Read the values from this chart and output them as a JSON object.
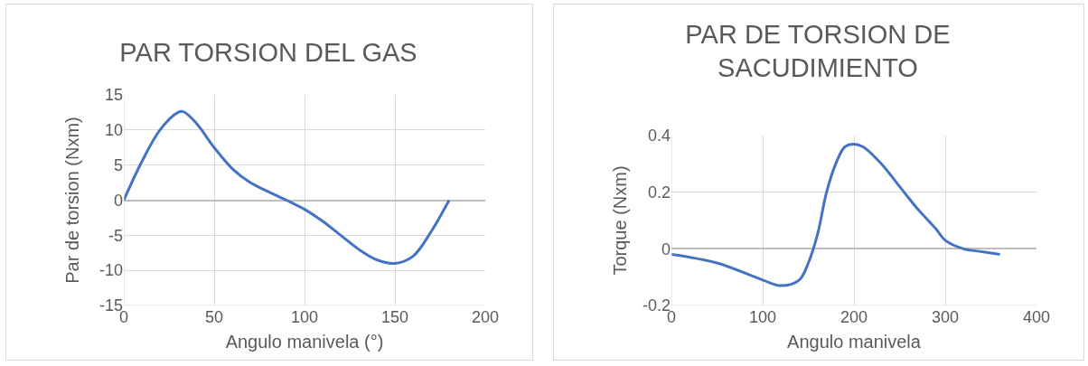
{
  "chart_data": [
    {
      "type": "line",
      "title": "PAR TORSION DEL GAS",
      "xlabel": "Angulo manivela (°)",
      "ylabel": "Par de torsion (Nxm)",
      "x": [
        0,
        10,
        20,
        30,
        33,
        40,
        50,
        60,
        70,
        80,
        90,
        100,
        110,
        120,
        130,
        140,
        150,
        160,
        170,
        180
      ],
      "series": [
        {
          "color": "#4472c4",
          "values": [
            0,
            5.5,
            10,
            12.5,
            12.6,
            11,
            7.5,
            4.5,
            2.5,
            1.2,
            0,
            -1.3,
            -3,
            -5,
            -7,
            -8.5,
            -9,
            -8,
            -4.5,
            0
          ]
        }
      ],
      "xlim": [
        0,
        200
      ],
      "xticks": [
        0,
        50,
        100,
        150,
        200
      ],
      "ylim": [
        -15,
        15
      ],
      "yticks": [
        -15,
        -10,
        -5,
        0,
        5,
        10,
        15
      ],
      "grid": true,
      "marker": "none",
      "line_style": "solid"
    },
    {
      "type": "line",
      "title": "PAR DE TORSION DE SACUDIMIENTO",
      "xlabel": "Angulo manivela",
      "ylabel": "Torque (Nxm)",
      "x": [
        0,
        50,
        100,
        120,
        140,
        150,
        160,
        170,
        180,
        190,
        200,
        210,
        230,
        250,
        270,
        290,
        300,
        320,
        340,
        360
      ],
      "series": [
        {
          "color": "#4472c4",
          "values": [
            -0.02,
            -0.05,
            -0.11,
            -0.13,
            -0.11,
            -0.05,
            0.05,
            0.2,
            0.3,
            0.36,
            0.37,
            0.36,
            0.3,
            0.22,
            0.14,
            0.07,
            0.03,
            0,
            -0.01,
            -0.02
          ]
        }
      ],
      "xlim": [
        0,
        400
      ],
      "xticks": [
        0,
        100,
        200,
        300,
        400
      ],
      "ylim": [
        -0.2,
        0.4
      ],
      "yticks": [
        -0.2,
        0,
        0.2,
        0.4
      ],
      "grid": true,
      "marker": "none",
      "line_style": "solid"
    }
  ]
}
